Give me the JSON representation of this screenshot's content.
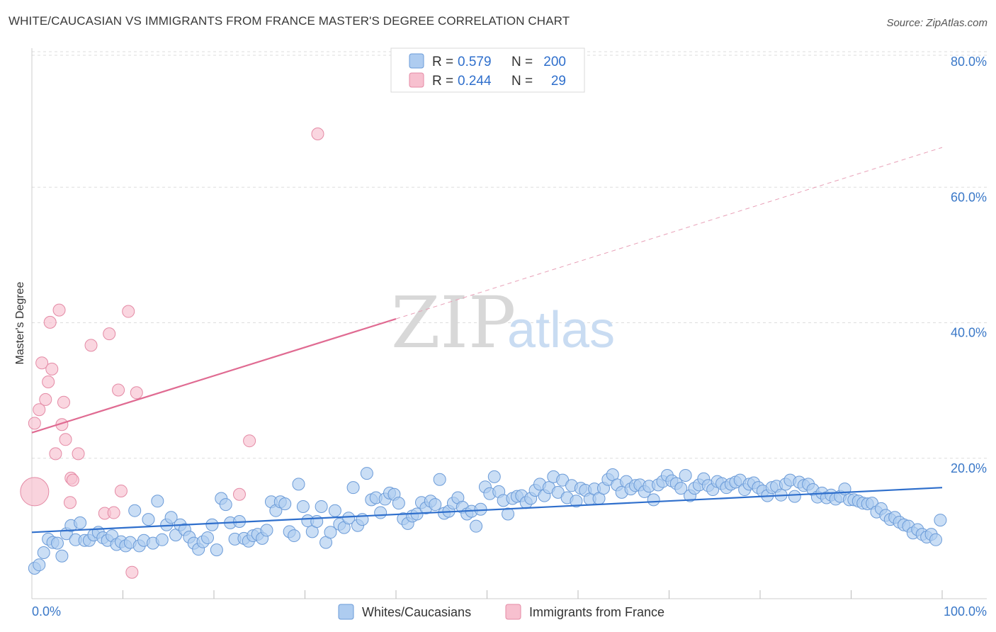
{
  "title": "WHITE/CAUCASIAN VS IMMIGRANTS FROM FRANCE MASTER'S DEGREE CORRELATION CHART",
  "source": "Source: ZipAtlas.com",
  "watermark": {
    "zip": "ZIP",
    "atlas": "atlas"
  },
  "legend_top": [
    {
      "r_label": "R =",
      "r_value": "0.579",
      "n_label": "N =",
      "n_value": "200",
      "color": "#aeccf0",
      "stroke": "#6b9bd8"
    },
    {
      "r_label": "R =",
      "r_value": "0.244",
      "n_label": "N =",
      "n_value": "29",
      "color": "#f7c0cf",
      "stroke": "#e48aa5"
    }
  ],
  "legend_bottom": [
    {
      "label": "Whites/Caucasians",
      "color": "#aeccf0",
      "stroke": "#6b9bd8"
    },
    {
      "label": "Immigrants from France",
      "color": "#f7c0cf",
      "stroke": "#e48aa5"
    }
  ],
  "chart_data": {
    "type": "scatter",
    "title": "WHITE/CAUCASIAN VS IMMIGRANTS FROM FRANCE MASTER'S DEGREE CORRELATION CHART",
    "xlabel": "",
    "ylabel": "Master's Degree",
    "xlim": [
      0,
      100
    ],
    "ylim": [
      0,
      82
    ],
    "x_tick_labels": [
      "0.0%",
      "100.0%"
    ],
    "y_ticks": [
      20,
      40,
      60,
      80
    ],
    "y_tick_labels": [
      "20.0%",
      "40.0%",
      "60.0%",
      "80.0%"
    ],
    "grid": true,
    "series": [
      {
        "name": "Whites/Caucasians",
        "color": "#6b9bd8",
        "fill": "#aeccf0",
        "trend": {
          "x0": 0,
          "y0": 9.8,
          "x1": 100,
          "y1": 16.4
        },
        "points": [
          [
            0.3,
            4.5
          ],
          [
            0.8,
            5.0
          ],
          [
            1.3,
            6.8
          ],
          [
            1.8,
            8.8
          ],
          [
            2.3,
            8.3
          ],
          [
            2.8,
            8.2
          ],
          [
            3.3,
            6.3
          ],
          [
            3.8,
            9.6
          ],
          [
            4.3,
            10.8
          ],
          [
            4.8,
            8.7
          ],
          [
            5.3,
            11.2
          ],
          [
            5.8,
            8.6
          ],
          [
            6.3,
            8.6
          ],
          [
            6.8,
            9.4
          ],
          [
            7.3,
            9.8
          ],
          [
            7.8,
            9.0
          ],
          [
            8.3,
            8.6
          ],
          [
            8.8,
            9.3
          ],
          [
            9.3,
            8.0
          ],
          [
            9.8,
            8.4
          ],
          [
            10.3,
            7.8
          ],
          [
            10.8,
            8.3
          ],
          [
            11.3,
            13.0
          ],
          [
            11.8,
            7.8
          ],
          [
            12.3,
            8.6
          ],
          [
            12.8,
            11.7
          ],
          [
            13.3,
            8.2
          ],
          [
            13.8,
            14.4
          ],
          [
            14.3,
            8.7
          ],
          [
            14.8,
            10.9
          ],
          [
            15.3,
            12.0
          ],
          [
            15.8,
            9.4
          ],
          [
            16.3,
            10.9
          ],
          [
            16.8,
            10.2
          ],
          [
            17.3,
            9.1
          ],
          [
            17.8,
            8.2
          ],
          [
            18.3,
            7.3
          ],
          [
            18.8,
            8.4
          ],
          [
            19.3,
            9.0
          ],
          [
            19.8,
            10.9
          ],
          [
            20.3,
            7.2
          ],
          [
            20.8,
            14.8
          ],
          [
            21.3,
            13.9
          ],
          [
            21.8,
            11.2
          ],
          [
            22.3,
            8.8
          ],
          [
            22.8,
            11.4
          ],
          [
            23.3,
            8.9
          ],
          [
            23.8,
            8.5
          ],
          [
            24.3,
            9.3
          ],
          [
            24.8,
            9.5
          ],
          [
            25.3,
            8.9
          ],
          [
            25.8,
            10.1
          ],
          [
            26.3,
            14.3
          ],
          [
            26.8,
            13.0
          ],
          [
            27.3,
            14.3
          ],
          [
            27.8,
            14.0
          ],
          [
            28.3,
            9.9
          ],
          [
            28.8,
            9.3
          ],
          [
            29.3,
            16.9
          ],
          [
            29.8,
            13.6
          ],
          [
            30.3,
            11.5
          ],
          [
            30.8,
            9.9
          ],
          [
            31.3,
            11.4
          ],
          [
            31.8,
            13.6
          ],
          [
            32.3,
            8.3
          ],
          [
            32.8,
            9.8
          ],
          [
            33.3,
            13.0
          ],
          [
            33.8,
            11.0
          ],
          [
            34.3,
            10.5
          ],
          [
            34.8,
            11.9
          ],
          [
            35.3,
            16.4
          ],
          [
            35.8,
            10.8
          ],
          [
            36.3,
            11.7
          ],
          [
            36.8,
            18.5
          ],
          [
            37.3,
            14.6
          ],
          [
            37.8,
            14.9
          ],
          [
            38.3,
            12.7
          ],
          [
            38.8,
            14.7
          ],
          [
            39.3,
            15.6
          ],
          [
            39.8,
            15.4
          ],
          [
            40.3,
            14.1
          ],
          [
            40.8,
            11.8
          ],
          [
            41.3,
            11.1
          ],
          [
            41.8,
            12.2
          ],
          [
            42.3,
            12.5
          ],
          [
            42.8,
            14.2
          ],
          [
            43.3,
            13.4
          ],
          [
            43.8,
            14.4
          ],
          [
            44.3,
            13.9
          ],
          [
            44.8,
            17.6
          ],
          [
            45.3,
            12.6
          ],
          [
            45.8,
            12.9
          ],
          [
            46.3,
            14.1
          ],
          [
            46.8,
            14.9
          ],
          [
            47.3,
            13.5
          ],
          [
            47.8,
            12.5
          ],
          [
            48.3,
            12.9
          ],
          [
            48.8,
            10.7
          ],
          [
            49.3,
            13.2
          ],
          [
            49.8,
            16.5
          ],
          [
            50.3,
            15.5
          ],
          [
            50.8,
            18.0
          ],
          [
            51.3,
            15.8
          ],
          [
            51.8,
            14.5
          ],
          [
            52.3,
            12.5
          ],
          [
            52.8,
            14.8
          ],
          [
            53.3,
            15.1
          ],
          [
            53.8,
            15.2
          ],
          [
            54.3,
            14.2
          ],
          [
            54.8,
            14.8
          ],
          [
            55.3,
            16.0
          ],
          [
            55.8,
            16.9
          ],
          [
            56.3,
            15.2
          ],
          [
            56.8,
            16.4
          ],
          [
            57.3,
            18.0
          ],
          [
            57.8,
            15.7
          ],
          [
            58.3,
            17.5
          ],
          [
            58.8,
            14.9
          ],
          [
            59.3,
            16.7
          ],
          [
            59.8,
            14.4
          ],
          [
            60.3,
            16.3
          ],
          [
            60.8,
            16.0
          ],
          [
            61.3,
            14.7
          ],
          [
            61.8,
            16.2
          ],
          [
            62.3,
            14.8
          ],
          [
            62.8,
            16.3
          ],
          [
            63.3,
            17.6
          ],
          [
            63.8,
            18.3
          ],
          [
            64.3,
            16.8
          ],
          [
            64.8,
            15.7
          ],
          [
            65.3,
            17.3
          ],
          [
            65.8,
            16.2
          ],
          [
            66.3,
            16.7
          ],
          [
            66.8,
            16.8
          ],
          [
            67.3,
            15.8
          ],
          [
            67.8,
            16.6
          ],
          [
            68.3,
            14.6
          ],
          [
            68.8,
            16.8
          ],
          [
            69.3,
            17.3
          ],
          [
            69.8,
            18.2
          ],
          [
            70.3,
            17.4
          ],
          [
            70.8,
            17.0
          ],
          [
            71.3,
            16.3
          ],
          [
            71.8,
            18.2
          ],
          [
            72.3,
            15.2
          ],
          [
            72.8,
            16.3
          ],
          [
            73.3,
            16.8
          ],
          [
            73.8,
            17.7
          ],
          [
            74.3,
            16.7
          ],
          [
            74.8,
            16.1
          ],
          [
            75.3,
            17.3
          ],
          [
            75.8,
            17.0
          ],
          [
            76.3,
            16.4
          ],
          [
            76.8,
            16.9
          ],
          [
            77.3,
            17.2
          ],
          [
            77.8,
            17.5
          ],
          [
            78.3,
            16.1
          ],
          [
            78.8,
            16.9
          ],
          [
            79.3,
            17.1
          ],
          [
            79.8,
            16.4
          ],
          [
            80.3,
            15.9
          ],
          [
            80.8,
            15.2
          ],
          [
            81.3,
            16.4
          ],
          [
            81.8,
            16.6
          ],
          [
            82.3,
            15.3
          ],
          [
            82.8,
            16.9
          ],
          [
            83.3,
            17.5
          ],
          [
            83.8,
            15.1
          ],
          [
            84.3,
            17.2
          ],
          [
            84.8,
            16.7
          ],
          [
            85.3,
            16.9
          ],
          [
            85.8,
            16.1
          ],
          [
            86.3,
            15.0
          ],
          [
            86.8,
            15.6
          ],
          [
            87.3,
            14.9
          ],
          [
            87.8,
            15.3
          ],
          [
            88.3,
            14.7
          ],
          [
            88.8,
            15.1
          ],
          [
            89.3,
            16.2
          ],
          [
            89.8,
            14.6
          ],
          [
            90.3,
            14.6
          ],
          [
            90.8,
            14.4
          ],
          [
            91.3,
            14.1
          ],
          [
            91.8,
            14.0
          ],
          [
            92.3,
            14.1
          ],
          [
            92.8,
            12.8
          ],
          [
            93.3,
            13.3
          ],
          [
            93.8,
            12.3
          ],
          [
            94.3,
            11.7
          ],
          [
            94.8,
            12.0
          ],
          [
            95.3,
            11.3
          ],
          [
            95.8,
            10.9
          ],
          [
            96.3,
            10.7
          ],
          [
            96.8,
            9.7
          ],
          [
            97.3,
            10.2
          ],
          [
            97.8,
            9.5
          ],
          [
            98.3,
            9.1
          ],
          [
            98.8,
            9.5
          ],
          [
            99.3,
            8.7
          ],
          [
            99.8,
            11.6
          ]
        ]
      },
      {
        "name": "Immigrants from France",
        "color": "#e48aa5",
        "fill": "#f7c0cf",
        "trend": {
          "x0": 0,
          "y0": 24.5,
          "x1": 40,
          "y1": 41.3
        },
        "trend_dashed": {
          "x0": 40,
          "y0": 41.3,
          "x1": 100,
          "y1": 66.6
        },
        "points": [
          [
            0.3,
            25.9
          ],
          [
            0.8,
            27.9
          ],
          [
            1.1,
            34.8
          ],
          [
            1.5,
            29.4
          ],
          [
            1.8,
            32.0
          ],
          [
            2.0,
            40.8
          ],
          [
            2.2,
            33.9
          ],
          [
            2.6,
            21.4
          ],
          [
            3.0,
            42.6
          ],
          [
            3.3,
            25.7
          ],
          [
            3.5,
            29.0
          ],
          [
            3.7,
            23.5
          ],
          [
            4.2,
            14.2
          ],
          [
            4.3,
            17.8
          ],
          [
            4.5,
            17.5
          ],
          [
            5.1,
            21.4
          ],
          [
            6.5,
            37.4
          ],
          [
            8.0,
            12.6
          ],
          [
            8.5,
            39.1
          ],
          [
            9.0,
            12.7
          ],
          [
            9.5,
            30.8
          ],
          [
            9.8,
            15.9
          ],
          [
            10.6,
            42.4
          ],
          [
            11.5,
            30.4
          ],
          [
            11.0,
            3.9
          ],
          [
            22.8,
            15.4
          ],
          [
            23.9,
            23.3
          ],
          [
            31.4,
            68.6
          ],
          [
            0.3,
            15.8
          ]
        ]
      }
    ]
  }
}
